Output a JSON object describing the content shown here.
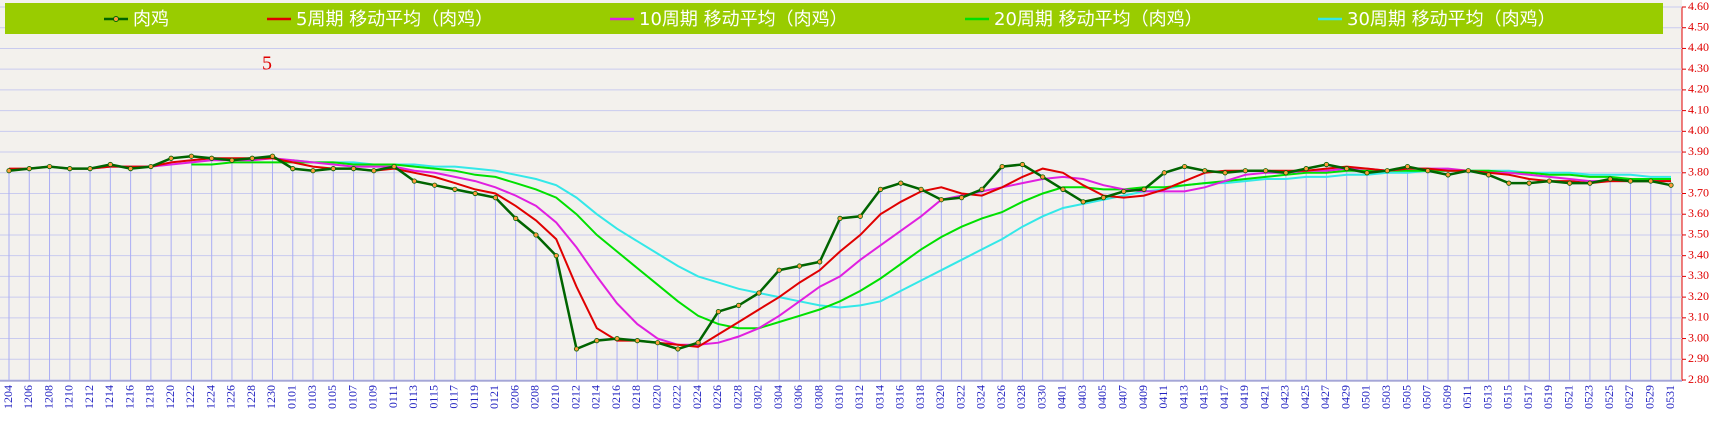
{
  "chart_data": {
    "type": "line",
    "annotation": "5",
    "categories": [
      "1204",
      "1206",
      "1208",
      "1210",
      "1212",
      "1214",
      "1216",
      "1218",
      "1220",
      "1222",
      "1224",
      "1226",
      "1228",
      "1230",
      "0101",
      "0103",
      "0105",
      "0107",
      "0109",
      "0111",
      "0113",
      "0115",
      "0117",
      "0119",
      "0121",
      "0206",
      "0208",
      "0210",
      "0212",
      "0214",
      "0216",
      "0218",
      "0220",
      "0222",
      "0224",
      "0226",
      "0228",
      "0302",
      "0304",
      "0306",
      "0308",
      "0310",
      "0312",
      "0314",
      "0316",
      "0318",
      "0320",
      "0322",
      "0324",
      "0326",
      "0328",
      "0330",
      "0401",
      "0403",
      "0405",
      "0407",
      "0409",
      "0411",
      "0413",
      "0415",
      "0417",
      "0419",
      "0421",
      "0423",
      "0425",
      "0427",
      "0429",
      "0501",
      "0503",
      "0505",
      "0507",
      "0509",
      "0511",
      "0513",
      "0515",
      "0517",
      "0519",
      "0521",
      "0523",
      "0525",
      "0527",
      "0529",
      "0531"
    ],
    "series": [
      {
        "name": "肉鸡",
        "color": "#006400",
        "markers": true,
        "drop_lines": true,
        "values": [
          3.81,
          3.82,
          3.83,
          3.82,
          3.82,
          3.84,
          3.82,
          3.83,
          3.87,
          3.88,
          3.87,
          3.86,
          3.87,
          3.88,
          3.82,
          3.81,
          3.82,
          3.82,
          3.81,
          3.83,
          3.76,
          3.74,
          3.72,
          3.7,
          3.68,
          3.58,
          3.5,
          3.4,
          2.95,
          2.99,
          3.0,
          2.99,
          2.98,
          2.95,
          2.98,
          3.13,
          3.16,
          3.22,
          3.33,
          3.35,
          3.37,
          3.58,
          3.59,
          3.72,
          3.75,
          3.72,
          3.67,
          3.68,
          3.72,
          3.83,
          3.84,
          3.78,
          3.72,
          3.66,
          3.68,
          3.71,
          3.72,
          3.8,
          3.83,
          3.81,
          3.8,
          3.81,
          3.81,
          3.8,
          3.82,
          3.84,
          3.82,
          3.8,
          3.81,
          3.83,
          3.81,
          3.79,
          3.81,
          3.79,
          3.75,
          3.75,
          3.76,
          3.75,
          3.75,
          3.77,
          3.76,
          3.76,
          3.74
        ]
      },
      {
        "name": "5周期 移动平均（肉鸡）",
        "color": "#e00000",
        "values": [
          3.82,
          3.82,
          3.83,
          3.82,
          3.82,
          3.83,
          3.83,
          3.83,
          3.85,
          3.86,
          3.87,
          3.87,
          3.87,
          3.87,
          3.85,
          3.83,
          3.82,
          3.82,
          3.81,
          3.82,
          3.8,
          3.78,
          3.75,
          3.72,
          3.7,
          3.64,
          3.57,
          3.48,
          3.25,
          3.05,
          2.99,
          2.99,
          2.98,
          2.97,
          2.96,
          3.02,
          3.08,
          3.14,
          3.2,
          3.27,
          3.33,
          3.42,
          3.5,
          3.6,
          3.66,
          3.71,
          3.73,
          3.7,
          3.69,
          3.73,
          3.78,
          3.82,
          3.8,
          3.74,
          3.69,
          3.68,
          3.69,
          3.72,
          3.76,
          3.8,
          3.81,
          3.81,
          3.81,
          3.81,
          3.81,
          3.82,
          3.83,
          3.82,
          3.81,
          3.82,
          3.82,
          3.81,
          3.81,
          3.8,
          3.79,
          3.77,
          3.76,
          3.76,
          3.75,
          3.76,
          3.76,
          3.76,
          3.76
        ]
      },
      {
        "name": "10周期 移动平均（肉鸡）",
        "color": "#e020e0",
        "values": [
          null,
          null,
          null,
          null,
          3.82,
          3.83,
          3.83,
          3.83,
          3.84,
          3.85,
          3.86,
          3.86,
          3.86,
          3.87,
          3.86,
          3.85,
          3.84,
          3.83,
          3.83,
          3.83,
          3.81,
          3.8,
          3.78,
          3.76,
          3.73,
          3.69,
          3.64,
          3.56,
          3.44,
          3.3,
          3.17,
          3.07,
          3.0,
          2.97,
          2.97,
          2.98,
          3.01,
          3.05,
          3.11,
          3.18,
          3.25,
          3.3,
          3.38,
          3.45,
          3.52,
          3.59,
          3.67,
          3.69,
          3.71,
          3.73,
          3.75,
          3.77,
          3.78,
          3.77,
          3.74,
          3.72,
          3.71,
          3.71,
          3.71,
          3.73,
          3.76,
          3.79,
          3.8,
          3.8,
          3.81,
          3.81,
          3.82,
          3.82,
          3.81,
          3.82,
          3.82,
          3.82,
          3.81,
          3.8,
          3.8,
          3.79,
          3.78,
          3.77,
          3.76,
          3.76,
          3.76,
          3.76,
          3.76
        ]
      },
      {
        "name": "20周期 移动平均（肉鸡）",
        "color": "#00e000",
        "values": [
          null,
          null,
          null,
          null,
          null,
          null,
          null,
          null,
          null,
          3.84,
          3.84,
          3.85,
          3.85,
          3.85,
          3.85,
          3.85,
          3.85,
          3.84,
          3.84,
          3.84,
          3.83,
          3.82,
          3.81,
          3.79,
          3.78,
          3.75,
          3.72,
          3.68,
          3.6,
          3.5,
          3.42,
          3.34,
          3.26,
          3.18,
          3.11,
          3.07,
          3.05,
          3.05,
          3.08,
          3.11,
          3.14,
          3.18,
          3.23,
          3.29,
          3.36,
          3.43,
          3.49,
          3.54,
          3.58,
          3.61,
          3.66,
          3.7,
          3.73,
          3.73,
          3.72,
          3.72,
          3.73,
          3.73,
          3.74,
          3.75,
          3.76,
          3.77,
          3.78,
          3.79,
          3.8,
          3.8,
          3.81,
          3.81,
          3.81,
          3.81,
          3.81,
          3.81,
          3.81,
          3.81,
          3.8,
          3.8,
          3.79,
          3.79,
          3.78,
          3.78,
          3.77,
          3.77,
          3.77
        ]
      },
      {
        "name": "30周期 移动平均（肉鸡）",
        "color": "#33e8e8",
        "values": [
          null,
          null,
          null,
          null,
          null,
          null,
          null,
          null,
          null,
          null,
          null,
          null,
          null,
          null,
          3.86,
          3.85,
          3.85,
          3.85,
          3.84,
          3.84,
          3.84,
          3.83,
          3.83,
          3.82,
          3.81,
          3.79,
          3.77,
          3.74,
          3.68,
          3.6,
          3.53,
          3.47,
          3.41,
          3.35,
          3.3,
          3.27,
          3.24,
          3.22,
          3.2,
          3.18,
          3.16,
          3.15,
          3.16,
          3.18,
          3.23,
          3.28,
          3.33,
          3.38,
          3.43,
          3.48,
          3.54,
          3.59,
          3.63,
          3.65,
          3.67,
          3.69,
          3.71,
          3.72,
          3.74,
          3.75,
          3.75,
          3.76,
          3.77,
          3.77,
          3.78,
          3.78,
          3.79,
          3.79,
          3.8,
          3.8,
          3.81,
          3.81,
          3.81,
          3.81,
          3.81,
          3.8,
          3.8,
          3.8,
          3.79,
          3.79,
          3.79,
          3.78,
          3.78
        ]
      }
    ],
    "ylim": [
      2.8,
      4.6
    ],
    "yticks": [
      {
        "value": 2.8,
        "label": "2.80"
      },
      {
        "value": 2.9,
        "label": "2.90"
      },
      {
        "value": 3.0,
        "label": "3.00"
      },
      {
        "value": 3.1,
        "label": "3.10"
      },
      {
        "value": 3.2,
        "label": "3.20"
      },
      {
        "value": 3.3,
        "label": "3.30"
      },
      {
        "value": 3.4,
        "label": "3.40"
      },
      {
        "value": 3.5,
        "label": "3.50"
      },
      {
        "value": 3.6,
        "label": "3.60"
      },
      {
        "value": 3.7,
        "label": "3.70"
      },
      {
        "value": 3.8,
        "label": "3.80"
      },
      {
        "value": 3.9,
        "label": "3.90"
      },
      {
        "value": 4.0,
        "label": "4.00"
      },
      {
        "value": 4.1,
        "label": "4.10"
      },
      {
        "value": 4.2,
        "label": "4.20"
      },
      {
        "value": 4.3,
        "label": "4.30"
      },
      {
        "value": 4.4,
        "label": "4.40"
      },
      {
        "value": 4.5,
        "label": "4.50"
      },
      {
        "value": 4.6,
        "label": "4.60"
      }
    ],
    "y_axis_side": "right",
    "grid": true,
    "legend": "top"
  }
}
